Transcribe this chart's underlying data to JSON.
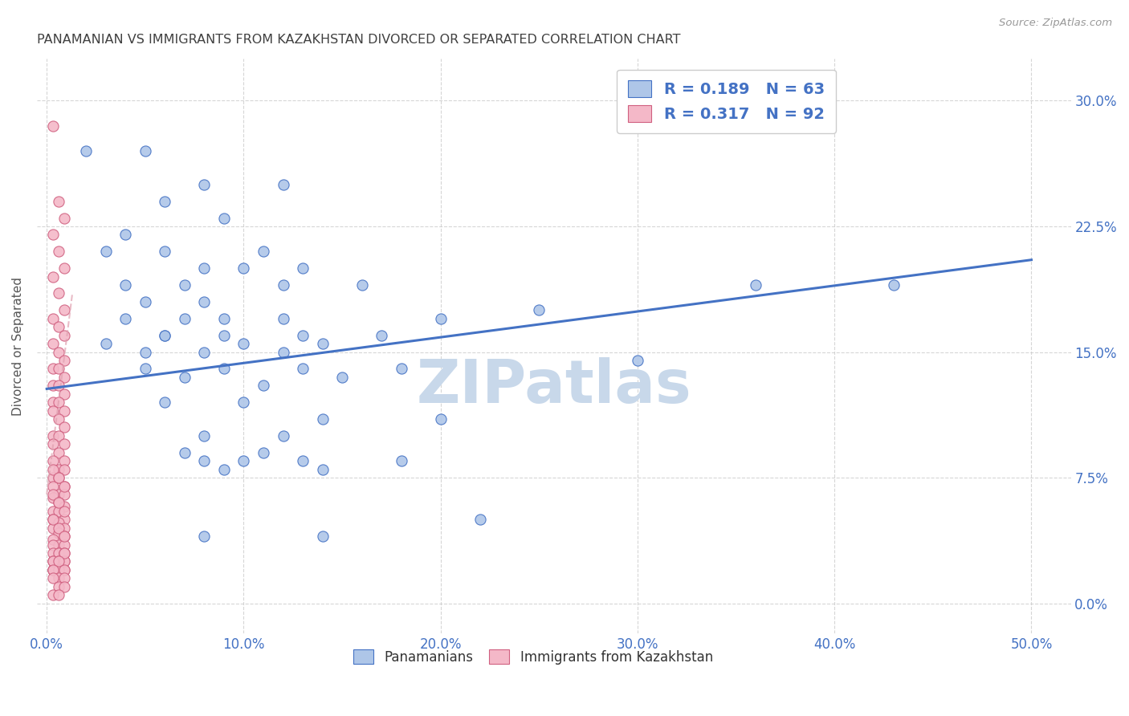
{
  "title": "PANAMANIAN VS IMMIGRANTS FROM KAZAKHSTAN DIVORCED OR SEPARATED CORRELATION CHART",
  "source": "Source: ZipAtlas.com",
  "ylabel_label": "Divorced or Separated",
  "xlim": [
    -0.005,
    0.52
  ],
  "ylim": [
    -0.018,
    0.325
  ],
  "blue_color": "#aec6e8",
  "pink_color": "#f4b8c8",
  "blue_line_color": "#4472c4",
  "pink_line_color": "#e08898",
  "title_color": "#404040",
  "axis_color": "#4472c4",
  "watermark": "ZIPatlas",
  "watermark_color": "#c8d8ea",
  "blue_scatter_x": [
    0.02,
    0.05,
    0.04,
    0.08,
    0.06,
    0.09,
    0.12,
    0.03,
    0.06,
    0.08,
    0.11,
    0.04,
    0.07,
    0.1,
    0.13,
    0.05,
    0.08,
    0.12,
    0.16,
    0.04,
    0.07,
    0.09,
    0.12,
    0.06,
    0.09,
    0.13,
    0.17,
    0.03,
    0.06,
    0.1,
    0.14,
    0.05,
    0.08,
    0.12,
    0.2,
    0.25,
    0.05,
    0.09,
    0.13,
    0.18,
    0.3,
    0.07,
    0.11,
    0.15,
    0.36,
    0.43,
    0.06,
    0.1,
    0.14,
    0.08,
    0.12,
    0.2,
    0.07,
    0.11,
    0.18,
    0.09,
    0.13,
    0.08,
    0.1,
    0.14,
    0.08,
    0.14,
    0.22
  ],
  "blue_scatter_y": [
    0.27,
    0.27,
    0.22,
    0.25,
    0.24,
    0.23,
    0.25,
    0.21,
    0.21,
    0.2,
    0.21,
    0.19,
    0.19,
    0.2,
    0.2,
    0.18,
    0.18,
    0.19,
    0.19,
    0.17,
    0.17,
    0.17,
    0.17,
    0.16,
    0.16,
    0.16,
    0.16,
    0.155,
    0.16,
    0.155,
    0.155,
    0.15,
    0.15,
    0.15,
    0.17,
    0.175,
    0.14,
    0.14,
    0.14,
    0.14,
    0.145,
    0.135,
    0.13,
    0.135,
    0.19,
    0.19,
    0.12,
    0.12,
    0.11,
    0.1,
    0.1,
    0.11,
    0.09,
    0.09,
    0.085,
    0.08,
    0.085,
    0.085,
    0.085,
    0.08,
    0.04,
    0.04,
    0.05
  ],
  "pink_scatter_x": [
    0.003,
    0.006,
    0.009,
    0.003,
    0.006,
    0.009,
    0.003,
    0.006,
    0.009,
    0.003,
    0.006,
    0.009,
    0.003,
    0.006,
    0.009,
    0.003,
    0.006,
    0.009,
    0.003,
    0.006,
    0.009,
    0.003,
    0.006,
    0.009,
    0.003,
    0.006,
    0.009,
    0.003,
    0.006,
    0.009,
    0.003,
    0.006,
    0.009,
    0.003,
    0.006,
    0.009,
    0.003,
    0.006,
    0.009,
    0.003,
    0.006,
    0.009,
    0.003,
    0.006,
    0.009,
    0.003,
    0.006,
    0.009,
    0.003,
    0.006,
    0.009,
    0.003,
    0.006,
    0.009,
    0.003,
    0.006,
    0.009,
    0.003,
    0.006,
    0.009,
    0.003,
    0.006,
    0.009,
    0.003,
    0.006,
    0.009,
    0.003,
    0.006,
    0.009,
    0.003,
    0.006,
    0.009,
    0.003,
    0.006,
    0.009,
    0.003,
    0.006,
    0.009,
    0.003,
    0.006,
    0.009,
    0.003,
    0.006,
    0.009,
    0.003,
    0.006,
    0.009,
    0.003,
    0.006,
    0.009,
    0.003,
    0.006
  ],
  "pink_scatter_y": [
    0.285,
    0.24,
    0.23,
    0.22,
    0.21,
    0.2,
    0.195,
    0.185,
    0.175,
    0.17,
    0.165,
    0.16,
    0.155,
    0.15,
    0.145,
    0.14,
    0.14,
    0.135,
    0.13,
    0.13,
    0.125,
    0.12,
    0.12,
    0.115,
    0.115,
    0.11,
    0.105,
    0.1,
    0.1,
    0.095,
    0.095,
    0.09,
    0.085,
    0.085,
    0.08,
    0.08,
    0.075,
    0.075,
    0.07,
    0.07,
    0.065,
    0.065,
    0.063,
    0.06,
    0.058,
    0.055,
    0.055,
    0.05,
    0.05,
    0.048,
    0.045,
    0.045,
    0.042,
    0.04,
    0.038,
    0.035,
    0.035,
    0.08,
    0.075,
    0.07,
    0.065,
    0.06,
    0.055,
    0.05,
    0.045,
    0.04,
    0.035,
    0.03,
    0.025,
    0.02,
    0.02,
    0.02,
    0.03,
    0.03,
    0.03,
    0.025,
    0.025,
    0.025,
    0.02,
    0.02,
    0.03,
    0.025,
    0.025,
    0.02,
    0.02,
    0.015,
    0.015,
    0.015,
    0.01,
    0.01,
    0.005,
    0.005
  ],
  "blue_line_x0": 0.0,
  "blue_line_y0": 0.128,
  "blue_line_x1": 0.5,
  "blue_line_y1": 0.205,
  "pink_line_x0": 0.0,
  "pink_line_y0": 0.065,
  "pink_line_x1": 0.013,
  "pink_line_y1": 0.185,
  "x_tick_vals": [
    0.0,
    0.1,
    0.2,
    0.3,
    0.4,
    0.5
  ],
  "x_tick_labels": [
    "0.0%",
    "10.0%",
    "20.0%",
    "30.0%",
    "40.0%",
    "50.0%"
  ],
  "y_tick_vals": [
    0.0,
    0.075,
    0.15,
    0.225,
    0.3
  ],
  "y_tick_labels": [
    "0.0%",
    "7.5%",
    "15.0%",
    "22.5%",
    "30.0%"
  ]
}
